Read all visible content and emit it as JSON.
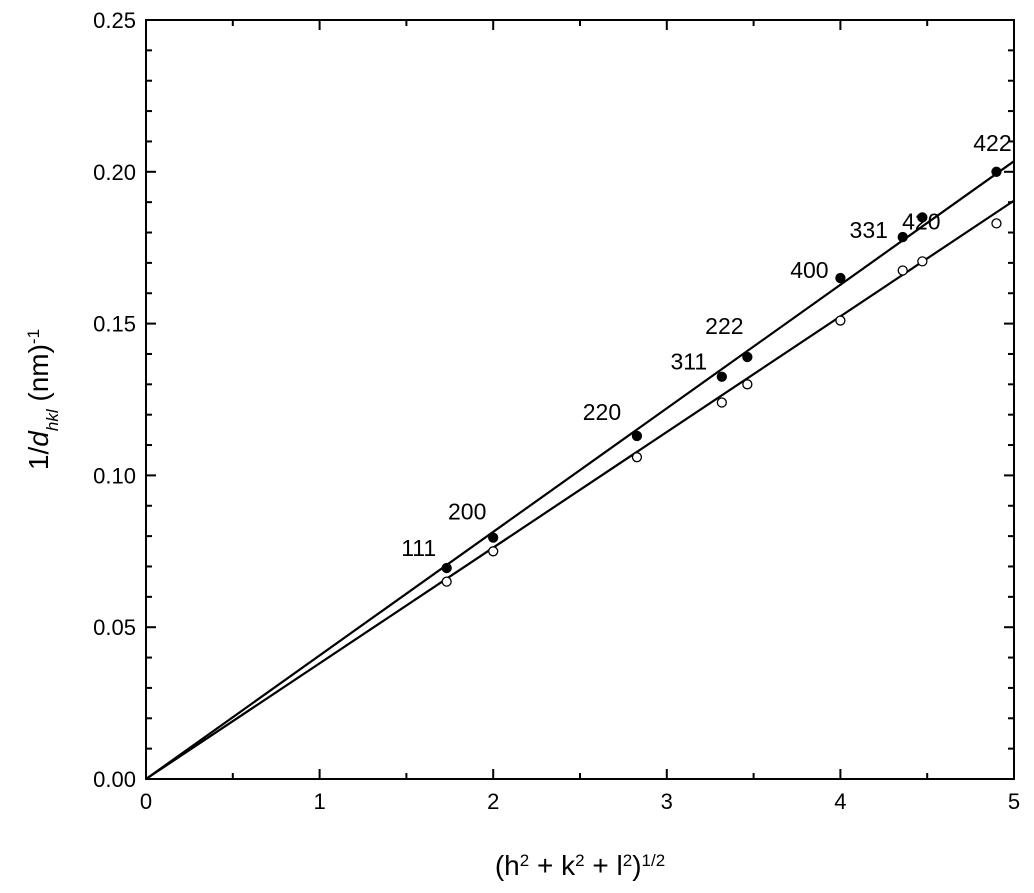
{
  "chart_data": {
    "type": "scatter",
    "x_label_parts": [
      {
        "text": "(h"
      },
      {
        "text": "2",
        "style": "sup"
      },
      {
        "text": " + k"
      },
      {
        "text": "2",
        "style": "sup"
      },
      {
        "text": " + l"
      },
      {
        "text": "2",
        "style": "sup"
      },
      {
        "text": ")"
      },
      {
        "text": "1/2",
        "style": "sup"
      }
    ],
    "y_label_parts": [
      {
        "text": "1/"
      },
      {
        "text": "d",
        "style": "italic"
      },
      {
        "text": "hkl",
        "style": "italic-sub"
      },
      {
        "text": "  (nm)"
      },
      {
        "text": "-1",
        "style": "sup"
      }
    ],
    "x": [
      1.732,
      2,
      2.828,
      3.317,
      3.464,
      4,
      4.359,
      4.472,
      4.899
    ],
    "series": [
      {
        "marker": "filled",
        "color": "#000000",
        "values": [
          0.0695,
          0.0795,
          0.113,
          0.1325,
          0.139,
          0.165,
          0.1785,
          0.185,
          0.2
        ],
        "labels": [
          "111",
          "200",
          "220",
          "311",
          "222",
          "400",
          "331",
          "420",
          "422"
        ]
      },
      {
        "marker": "open",
        "color": "#000000",
        "values": [
          0.065,
          0.075,
          0.106,
          0.124,
          0.13,
          0.151,
          0.1675,
          0.1705,
          0.183
        ]
      }
    ],
    "fits": [
      {
        "x": [
          0,
          5
        ],
        "values": [
          0,
          0.2035
        ]
      },
      {
        "x": [
          0,
          5
        ],
        "values": [
          0,
          0.1905
        ]
      }
    ],
    "xlim": [
      0,
      5
    ],
    "ylim": [
      0,
      0.25
    ],
    "xticks": [
      0,
      1,
      2,
      3,
      4,
      5
    ],
    "xminorticks": [
      0.5,
      1.5,
      2.5,
      3.5,
      4.5
    ],
    "yticks": [
      {
        "value": 0,
        "label": "0.00"
      },
      {
        "value": 0.05,
        "label": "0.05"
      },
      {
        "value": 0.1,
        "label": "0.10"
      },
      {
        "value": 0.15,
        "label": "0.15"
      },
      {
        "value": 0.2,
        "label": "0.20"
      },
      {
        "value": 0.25,
        "label": "0.25"
      }
    ],
    "yminorticks": [
      0.01,
      0.02,
      0.03,
      0.04,
      0.06,
      0.07,
      0.08,
      0.09,
      0.11,
      0.12,
      0.13,
      0.14,
      0.16,
      0.17,
      0.18,
      0.19,
      0.21,
      0.22,
      0.23,
      0.24
    ]
  }
}
